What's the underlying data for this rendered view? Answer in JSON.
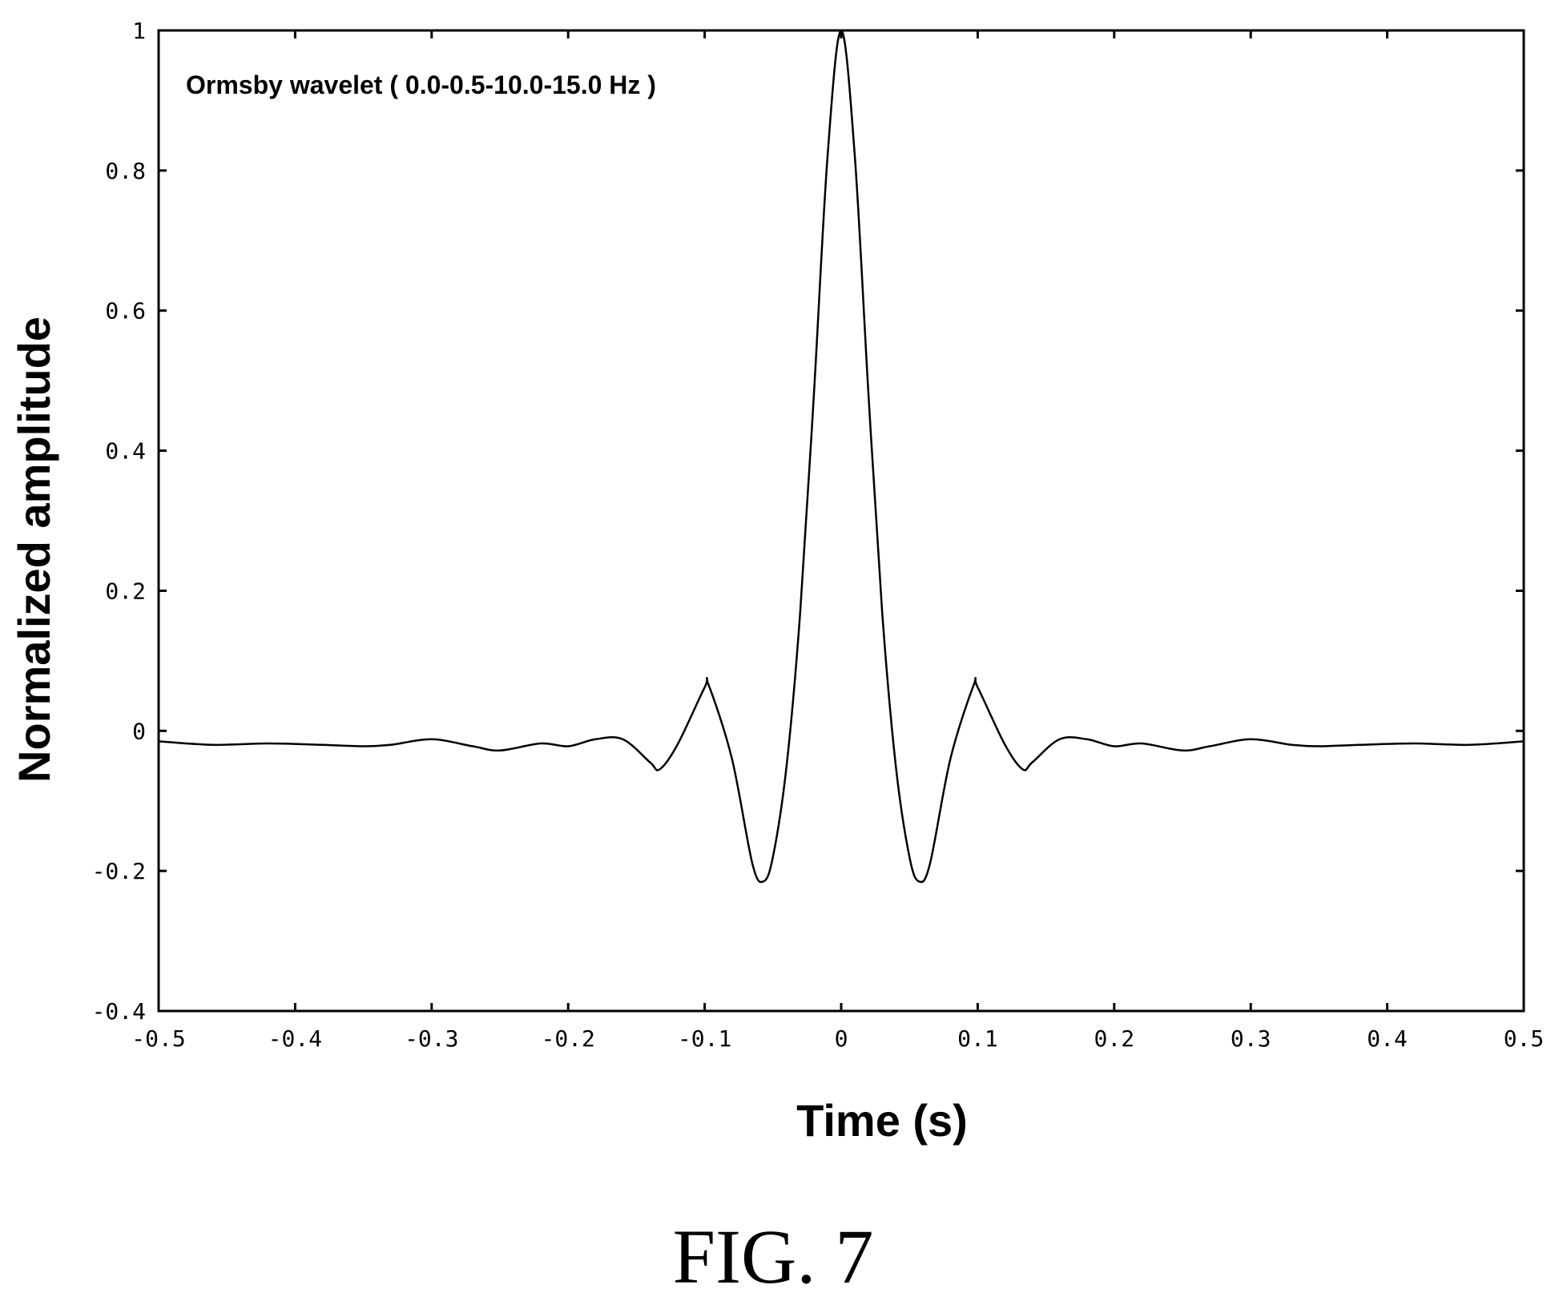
{
  "chart_data": {
    "type": "line",
    "annotation": "Ormsby wavelet ( 0.0-0.5-10.0-15.0 Hz )",
    "xlabel": "Time (s)",
    "ylabel": "Normalized amplitude",
    "xlim": [
      -0.5,
      0.5
    ],
    "ylim": [
      -0.4,
      1.0
    ],
    "x_ticks": [
      -0.5,
      -0.4,
      -0.3,
      -0.2,
      -0.1,
      0,
      0.1,
      0.2,
      0.3,
      0.4,
      0.5
    ],
    "x_tick_labels": [
      "-0.5",
      "-0.4",
      "-0.3",
      "-0.2",
      "-0.1",
      "0",
      "0.1",
      "0.2",
      "0.3",
      "0.4",
      "0.5"
    ],
    "y_ticks": [
      -0.4,
      -0.2,
      0,
      0.2,
      0.4,
      0.6,
      0.8,
      1.0
    ],
    "y_tick_labels": [
      "-0.4",
      "-0.2",
      "0",
      "0.2",
      "0.4",
      "0.6",
      "0.8",
      "1"
    ],
    "grid": false,
    "series": [
      {
        "color": "#000000",
        "x": [
          -0.5,
          -0.46,
          -0.42,
          -0.38,
          -0.35,
          -0.33,
          -0.3,
          -0.27,
          -0.25,
          -0.22,
          -0.2,
          -0.18,
          -0.16,
          -0.14,
          -0.133,
          -0.12,
          -0.1,
          -0.097,
          -0.08,
          -0.065,
          -0.057,
          -0.05,
          -0.04,
          -0.03,
          -0.02,
          -0.01,
          0,
          0.01,
          0.02,
          0.03,
          0.04,
          0.05,
          0.057,
          0.065,
          0.08,
          0.097,
          0.1,
          0.12,
          0.133,
          0.14,
          0.16,
          0.18,
          0.2,
          0.22,
          0.25,
          0.27,
          0.3,
          0.33,
          0.35,
          0.38,
          0.42,
          0.46,
          0.5
        ],
        "y": [
          -0.015,
          -0.02,
          -0.018,
          -0.02,
          -0.022,
          -0.02,
          -0.012,
          -0.022,
          -0.028,
          -0.018,
          -0.022,
          -0.012,
          -0.012,
          -0.045,
          -0.055,
          -0.02,
          0.062,
          0.065,
          -0.04,
          -0.19,
          -0.215,
          -0.18,
          -0.05,
          0.17,
          0.48,
          0.82,
          1.0,
          0.82,
          0.48,
          0.17,
          -0.05,
          -0.18,
          -0.215,
          -0.19,
          -0.04,
          0.065,
          0.062,
          -0.02,
          -0.055,
          -0.045,
          -0.012,
          -0.012,
          -0.022,
          -0.018,
          -0.028,
          -0.022,
          -0.012,
          -0.02,
          -0.022,
          -0.02,
          -0.018,
          -0.02,
          -0.015
        ]
      }
    ]
  },
  "figure_label": "FIG. 7"
}
